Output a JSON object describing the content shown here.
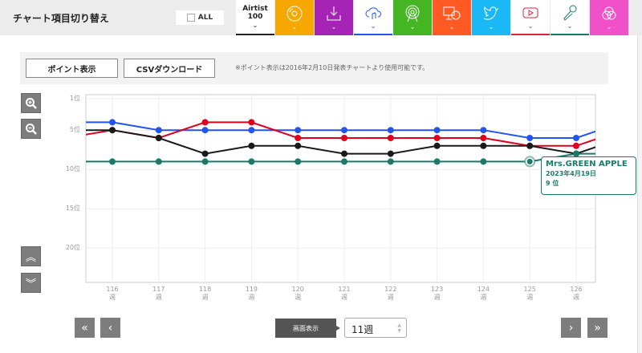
{
  "header": {
    "title": "チャート項目切り替え",
    "all_label": "ALL"
  },
  "tabs": [
    {
      "label": "Airtist\n100",
      "line1": "Airtist",
      "line2": "100",
      "bg": "#ffffff",
      "icon": "text"
    },
    {
      "icon": "cd-icon",
      "bg": "#f7a800"
    },
    {
      "icon": "download-icon",
      "bg": "#a524b5"
    },
    {
      "icon": "cloud-music-icon",
      "bg": "#ffffff",
      "accent": "#2255ee"
    },
    {
      "icon": "radio-icon",
      "bg": "#45b524"
    },
    {
      "icon": "pc-cd-icon",
      "bg": "#ff5a24"
    },
    {
      "icon": "twitter-icon",
      "bg": "#1ab8f5"
    },
    {
      "icon": "youtube-icon",
      "bg": "#ffffff",
      "accent": "#e0203a"
    },
    {
      "icon": "karaoke-mic-icon",
      "bg": "#ffffff",
      "accent": "#1a7a6a"
    },
    {
      "icon": "venn-icon",
      "bg": "#f050c8"
    }
  ],
  "toolbar": {
    "point_btn": "ポイント表示",
    "csv_btn": "CSVダウンロード",
    "note": "※ポイント表示は2016年2月10日発表チャートより使用可能です。"
  },
  "pager": {
    "display_label": "画面表示",
    "weeks_value": "11週"
  },
  "tooltip": {
    "name": "Mrs.GREEN APPLE",
    "date": "2023年4月19日",
    "rank": "9 位"
  },
  "chart_data": {
    "type": "line",
    "y_ticks": [
      "1位",
      "5位",
      "10位",
      "15位",
      "20位"
    ],
    "y_tick_values": [
      1,
      5,
      10,
      15,
      20
    ],
    "ylim": [
      1,
      24
    ],
    "x_labels": [
      "116",
      "117",
      "118",
      "119",
      "120",
      "121",
      "122",
      "123",
      "124",
      "125",
      "126"
    ],
    "x_unit": "週",
    "x": [
      115,
      116,
      117,
      118,
      119,
      120,
      121,
      122,
      123,
      124,
      125,
      126,
      127
    ],
    "series": [
      {
        "name": "blue",
        "color": "#2255ee",
        "values": [
          4,
          4,
          5,
          5,
          5,
          5,
          5,
          5,
          5,
          5,
          6,
          6,
          4
        ]
      },
      {
        "name": "red",
        "color": "#e0001e",
        "values": [
          6,
          5,
          6,
          4,
          4,
          6,
          6,
          6,
          6,
          6,
          7,
          7,
          5
        ]
      },
      {
        "name": "black",
        "color": "#1a1a1a",
        "values": [
          5,
          5,
          6,
          8,
          7,
          7,
          8,
          8,
          7,
          7,
          7,
          8,
          6
        ]
      },
      {
        "name": "Mrs.GREEN APPLE",
        "color": "#1a7a6a",
        "values": [
          9,
          9,
          9,
          9,
          9,
          9,
          9,
          9,
          9,
          9,
          9,
          8,
          8
        ]
      }
    ],
    "highlight": {
      "series": "Mrs.GREEN APPLE",
      "x": 125
    }
  }
}
